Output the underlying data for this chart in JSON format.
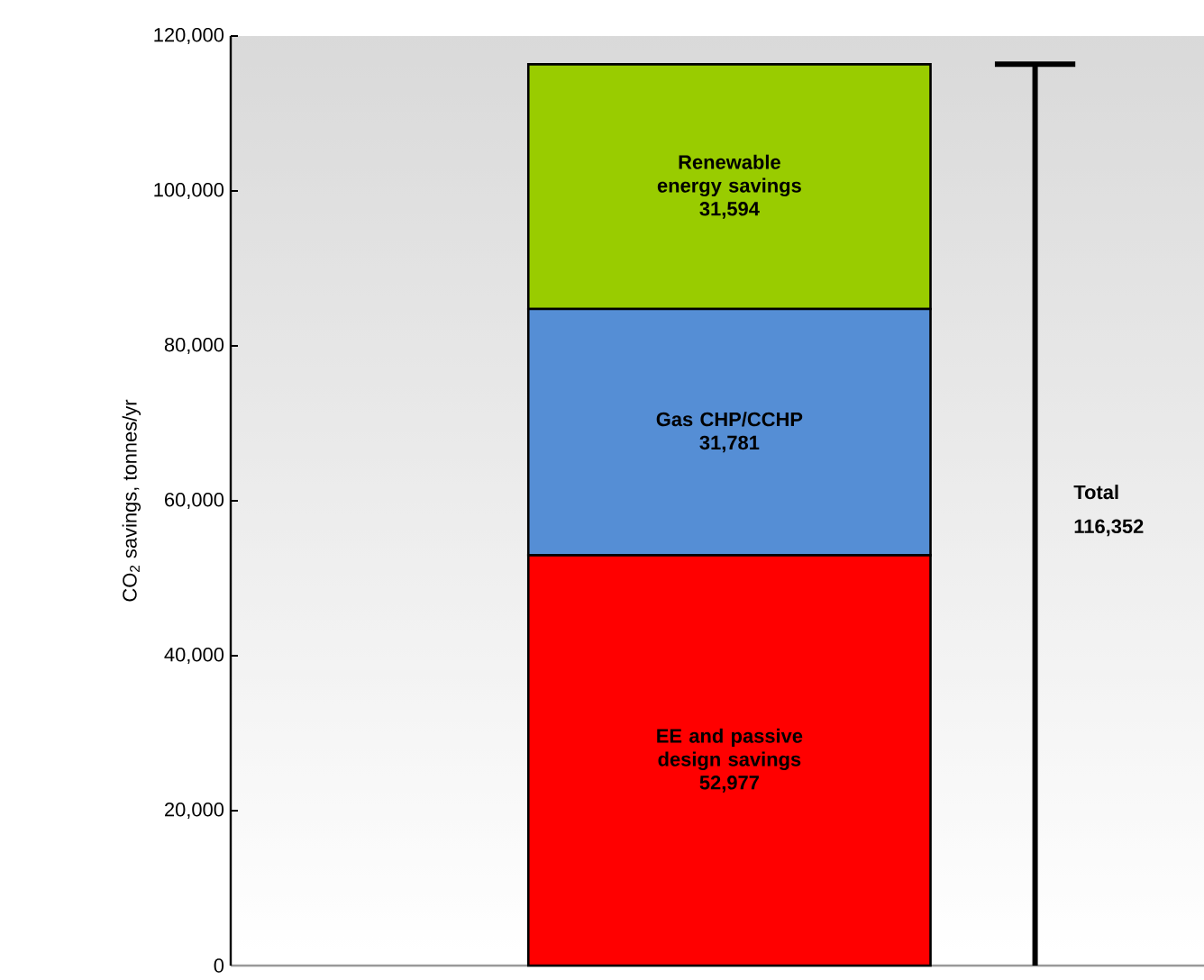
{
  "chart_data": {
    "type": "bar",
    "stacked": true,
    "ylabel": "CO$_{2}$ savings, tonnes/yr",
    "categories": [
      null
    ],
    "series": [
      {
        "name": "EE and passive design savings",
        "color": "#ff0000",
        "values": [
          52977
        ],
        "value_labels": [
          "52,977"
        ]
      },
      {
        "name": "Gas CHP/CCHP",
        "color": "#558ed5",
        "values": [
          31781
        ],
        "value_labels": [
          "31,781"
        ]
      },
      {
        "name": "Renewable energy savings",
        "color": "#99cc00",
        "values": [
          31594
        ],
        "value_labels": [
          "31,594"
        ]
      }
    ],
    "annotations": [
      "Total",
      "116,352"
    ],
    "ylim": [
      0,
      120000
    ],
    "yticks": [
      {
        "value": 0,
        "label": "0"
      },
      {
        "value": 20000,
        "label": "20,000"
      },
      {
        "value": 40000,
        "label": "40,000"
      },
      {
        "value": 60000,
        "label": "60,000"
      },
      {
        "value": 80000,
        "label": "80,000"
      },
      {
        "value": 100000,
        "label": "100,000"
      },
      {
        "value": 120000,
        "label": "120,000"
      }
    ],
    "tick_labels": "y",
    "grid": false,
    "legend": false
  }
}
